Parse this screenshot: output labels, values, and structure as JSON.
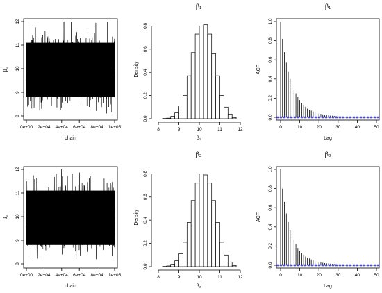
{
  "chart_data": [
    {
      "type": "line",
      "subtype": "trace",
      "parameter": "beta1",
      "title": "",
      "xlabel": "chain",
      "ylabel": "β₁",
      "xlim": [
        0,
        100000
      ],
      "ylim": [
        8,
        12
      ],
      "x_ticks": [
        "0e+00",
        "2e+04",
        "4e+04",
        "6e+04",
        "8e+04",
        "1e+05"
      ],
      "x_tick_values": [
        0,
        20000,
        40000,
        60000,
        80000,
        100000
      ],
      "y_ticks": [
        "8",
        "9",
        "10",
        "11",
        "12"
      ],
      "y_tick_values": [
        8,
        9,
        10,
        11,
        12
      ],
      "series": [
        {
          "x_range": [
            0,
            100000
          ],
          "center": 10.0,
          "band_low": 8.8,
          "band_high": 11.1,
          "min": 8.1,
          "max": 12.0
        }
      ]
    },
    {
      "type": "bar",
      "subtype": "histogram",
      "parameter": "beta1",
      "title": "β₁",
      "xlabel": "β₁",
      "ylabel": "Density",
      "xlim": [
        8,
        12
      ],
      "ylim": [
        0,
        0.85
      ],
      "x_ticks": [
        "8",
        "9",
        "10",
        "11",
        "12"
      ],
      "x_tick_values": [
        8,
        9,
        10,
        11,
        12
      ],
      "y_ticks": [
        "0.0",
        "0.2",
        "0.4",
        "0.6",
        "0.8"
      ],
      "y_tick_values": [
        0,
        0.2,
        0.4,
        0.6,
        0.8
      ],
      "bin_edges": [
        8.2,
        8.4,
        8.6,
        8.8,
        9.0,
        9.2,
        9.4,
        9.6,
        9.8,
        10.0,
        10.2,
        10.4,
        10.6,
        10.8,
        11.0,
        11.2,
        11.4,
        11.6,
        11.8
      ],
      "values": [
        0.002,
        0.005,
        0.02,
        0.05,
        0.11,
        0.2,
        0.37,
        0.57,
        0.73,
        0.8,
        0.81,
        0.73,
        0.56,
        0.37,
        0.2,
        0.1,
        0.04,
        0.01
      ]
    },
    {
      "type": "bar",
      "subtype": "acf",
      "parameter": "beta1",
      "title": "β₁",
      "xlabel": "Lag",
      "ylabel": "ACF",
      "xlim": [
        0,
        50
      ],
      "ylim": [
        0,
        1.0
      ],
      "x_ticks": [
        "0",
        "10",
        "20",
        "30",
        "40",
        "50"
      ],
      "x_tick_values": [
        0,
        10,
        20,
        30,
        40,
        50
      ],
      "y_ticks": [
        "0.0",
        "0.2",
        "0.4",
        "0.6",
        "0.8",
        "1.0"
      ],
      "y_tick_values": [
        0,
        0.2,
        0.4,
        0.6,
        0.8,
        1.0
      ],
      "lags": [
        0,
        1,
        2,
        3,
        4,
        5,
        6,
        7,
        8,
        9,
        10,
        11,
        12,
        13,
        14,
        15,
        16,
        17,
        18,
        19,
        20,
        21,
        22,
        23,
        24,
        25,
        26,
        27,
        28,
        29,
        30,
        31,
        32,
        33,
        34,
        35,
        36,
        37,
        38,
        39,
        40,
        41,
        42,
        43,
        44,
        45,
        46,
        47,
        48,
        49,
        50
      ],
      "values": [
        1.0,
        0.82,
        0.68,
        0.57,
        0.48,
        0.4,
        0.34,
        0.29,
        0.25,
        0.21,
        0.18,
        0.15,
        0.13,
        0.11,
        0.09,
        0.08,
        0.07,
        0.06,
        0.05,
        0.045,
        0.04,
        0.035,
        0.03,
        0.025,
        0.022,
        0.02,
        0.018,
        0.016,
        0.014,
        0.012,
        0.011,
        0.01,
        0.009,
        0.008,
        0.007,
        0.006,
        0.006,
        0.005,
        0.005,
        0.004,
        0.004,
        0.004,
        0.003,
        0.003,
        0.003,
        0.003,
        0.002,
        0.002,
        0.002,
        0.002,
        0.002
      ],
      "conf_band": 0.006,
      "conf_color": "#2a2aff"
    },
    {
      "type": "line",
      "subtype": "trace",
      "parameter": "beta2",
      "title": "",
      "xlabel": "chain",
      "ylabel": "β₂",
      "xlim": [
        0,
        100000
      ],
      "ylim": [
        8,
        12
      ],
      "x_ticks": [
        "0e+00",
        "2e+04",
        "4e+04",
        "6e+04",
        "8e+04",
        "1e+05"
      ],
      "x_tick_values": [
        0,
        20000,
        40000,
        60000,
        80000,
        100000
      ],
      "y_ticks": [
        "8",
        "9",
        "10",
        "11",
        "12"
      ],
      "y_tick_values": [
        8,
        9,
        10,
        11,
        12
      ],
      "series": [
        {
          "x_range": [
            0,
            100000
          ],
          "center": 10.0,
          "band_low": 8.8,
          "band_high": 11.1,
          "min": 8.2,
          "max": 12.0
        }
      ]
    },
    {
      "type": "bar",
      "subtype": "histogram",
      "parameter": "beta2",
      "title": "β₂",
      "xlabel": "β₂",
      "ylabel": "Density",
      "xlim": [
        8,
        12
      ],
      "ylim": [
        0,
        0.85
      ],
      "x_ticks": [
        "8",
        "9",
        "10",
        "11",
        "12"
      ],
      "x_tick_values": [
        8,
        9,
        10,
        11,
        12
      ],
      "y_ticks": [
        "0.0",
        "0.2",
        "0.4",
        "0.6",
        "0.8"
      ],
      "y_tick_values": [
        0,
        0.2,
        0.4,
        0.6,
        0.8
      ],
      "bin_edges": [
        8.2,
        8.4,
        8.6,
        8.8,
        9.0,
        9.2,
        9.4,
        9.6,
        9.8,
        10.0,
        10.2,
        10.4,
        10.6,
        10.8,
        11.0,
        11.2,
        11.4,
        11.6,
        11.8
      ],
      "values": [
        0.002,
        0.006,
        0.02,
        0.05,
        0.11,
        0.21,
        0.38,
        0.57,
        0.72,
        0.8,
        0.79,
        0.72,
        0.57,
        0.38,
        0.21,
        0.1,
        0.04,
        0.01
      ]
    },
    {
      "type": "bar",
      "subtype": "acf",
      "parameter": "beta2",
      "title": "β₂",
      "xlabel": "Lag",
      "ylabel": "ACF",
      "xlim": [
        0,
        50
      ],
      "ylim": [
        0,
        1.0
      ],
      "x_ticks": [
        "0",
        "10",
        "20",
        "30",
        "40",
        "50"
      ],
      "x_tick_values": [
        0,
        10,
        20,
        30,
        40,
        50
      ],
      "y_ticks": [
        "0.0",
        "0.2",
        "0.4",
        "0.6",
        "0.8",
        "1.0"
      ],
      "y_tick_values": [
        0,
        0.2,
        0.4,
        0.6,
        0.8,
        1.0
      ],
      "lags": [
        0,
        1,
        2,
        3,
        4,
        5,
        6,
        7,
        8,
        9,
        10,
        11,
        12,
        13,
        14,
        15,
        16,
        17,
        18,
        19,
        20,
        21,
        22,
        23,
        24,
        25,
        26,
        27,
        28,
        29,
        30,
        31,
        32,
        33,
        34,
        35,
        36,
        37,
        38,
        39,
        40,
        41,
        42,
        43,
        44,
        45,
        46,
        47,
        48,
        49,
        50
      ],
      "values": [
        1.0,
        0.8,
        0.66,
        0.54,
        0.45,
        0.37,
        0.31,
        0.26,
        0.22,
        0.18,
        0.15,
        0.13,
        0.11,
        0.09,
        0.08,
        0.07,
        0.06,
        0.05,
        0.045,
        0.04,
        0.035,
        0.03,
        0.025,
        0.022,
        0.02,
        0.018,
        0.016,
        0.014,
        0.012,
        0.011,
        0.01,
        0.009,
        0.008,
        0.007,
        0.006,
        0.006,
        0.005,
        0.005,
        0.004,
        0.004,
        0.004,
        0.003,
        0.003,
        0.003,
        0.003,
        0.002,
        0.002,
        0.002,
        0.002,
        0.002,
        0.002
      ],
      "conf_band": 0.006,
      "conf_color": "#2a2aff"
    }
  ]
}
